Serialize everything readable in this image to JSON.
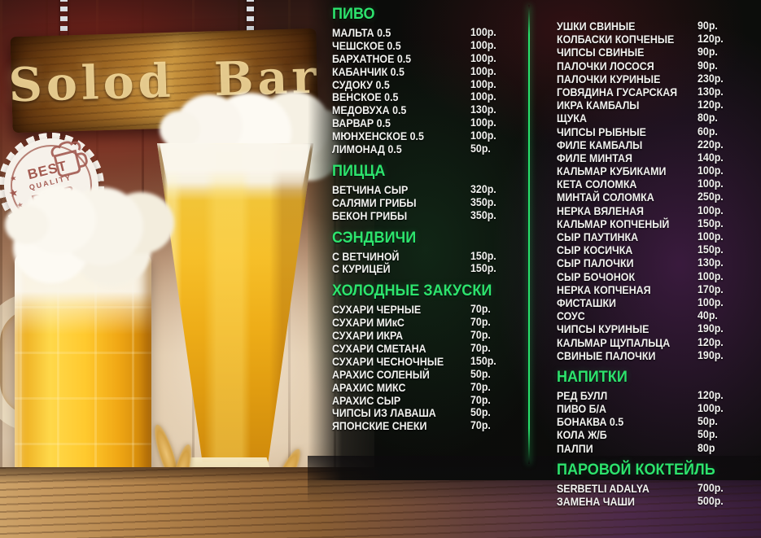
{
  "sign": {
    "title": "Solod Bar"
  },
  "badge": {
    "best": "BEST",
    "quality": "QUALITY",
    "beer": "BEER"
  },
  "colors": {
    "heading_green": "#2de36d",
    "divider_green": "#27e06a",
    "item_text": "#f2f2ef",
    "sign_text": "#f8de9e",
    "badge_accent": "#a25a50"
  },
  "menu": {
    "columns": [
      {
        "sections": [
          {
            "title": "ПИВО",
            "items": [
              {
                "name": "МАЛЬТА 0.5",
                "price": "100р."
              },
              {
                "name": "ЧЕШСКОЕ 0.5",
                "price": "100р."
              },
              {
                "name": "БАРХАТНОЕ 0.5",
                "price": "100р."
              },
              {
                "name": "КАБАНЧИК 0.5",
                "price": "100р."
              },
              {
                "name": "СУДОКУ 0.5",
                "price": "100р."
              },
              {
                "name": "ВЕНСКОЕ 0.5",
                "price": "100р."
              },
              {
                "name": "МЕДОВУХА 0.5",
                "price": "130р."
              },
              {
                "name": "ВАРВАР 0.5",
                "price": "100р."
              },
              {
                "name": "МЮНХЕНСКОЕ 0.5",
                "price": "100р."
              },
              {
                "name": "ЛИМОНАД 0.5",
                "price": "50р."
              }
            ]
          },
          {
            "title": "ПИЦЦА",
            "items": [
              {
                "name": "ВЕТЧИНА СЫР",
                "price": "320р."
              },
              {
                "name": "САЛЯМИ ГРИБЫ",
                "price": "350р."
              },
              {
                "name": "БЕКОН ГРИБЫ",
                "price": "350р."
              }
            ]
          },
          {
            "title": "СЭНДВИЧИ",
            "items": [
              {
                "name": "С ВЕТЧИНОЙ",
                "price": "150р."
              },
              {
                "name": "С КУРИЦЕЙ",
                "price": "150р."
              }
            ]
          },
          {
            "title": "ХОЛОДНЫЕ ЗАКУСКИ",
            "items": [
              {
                "name": "СУХАРИ ЧЕРНЫЕ",
                "price": "70р."
              },
              {
                "name": "СУХАРИ МИкС",
                "price": "70р."
              },
              {
                "name": "СУХАРИ ИКРА",
                "price": "70р."
              },
              {
                "name": "СУХАРИ СМЕТАНА",
                "price": "70р."
              },
              {
                "name": "СУХАРИ ЧЕСНОЧНЫЕ",
                "price": "150р."
              },
              {
                "name": "АРАХИС СОЛЕНЫЙ",
                "price": "50р."
              },
              {
                "name": "АРАХИС МИКС",
                "price": "70р."
              },
              {
                "name": "АРАХИС СЫР",
                "price": "70р."
              },
              {
                "name": "ЧИПСЫ ИЗ ЛАВАША",
                "price": "50р."
              },
              {
                "name": "ЯПОНСКИЕ СНЕКИ",
                "price": "70р."
              }
            ]
          }
        ]
      },
      {
        "sections": [
          {
            "title": "",
            "items": [
              {
                "name": "УШКИ СВИНЫЕ",
                "price": "90р."
              },
              {
                "name": "КОЛБАСКИ КОПЧЕНЫЕ",
                "price": "120р."
              },
              {
                "name": "ЧИПСЫ СВИНЫЕ",
                "price": "90р."
              },
              {
                "name": "ПАЛОЧКИ ЛОСОСЯ",
                "price": "90р."
              },
              {
                "name": "ПАЛОЧКИ КУРИНЫЕ",
                "price": "230р."
              },
              {
                "name": "ГОВЯДИНА ГУСАРСКАЯ",
                "price": "130р."
              },
              {
                "name": "ИКРА КАМБАЛЫ",
                "price": "120р."
              },
              {
                "name": "ЩУКА",
                "price": "80р."
              },
              {
                "name": "ЧИПСЫ РЫБНЫЕ",
                "price": "60р."
              },
              {
                "name": "ФИЛЕ КАМБАЛЫ",
                "price": "220р."
              },
              {
                "name": "ФИЛЕ МИНТАЯ",
                "price": "140р."
              },
              {
                "name": "КАЛЬМАР КУБИКАМИ",
                "price": "100р."
              },
              {
                "name": "КЕТА СОЛОМКА",
                "price": "100р."
              },
              {
                "name": "МИНТАЙ СОЛОМКА",
                "price": "250р."
              },
              {
                "name": "НЕРКА ВЯЛЕНАЯ",
                "price": "100р."
              },
              {
                "name": "КАЛЬМАР КОПЧЕНЫЙ",
                "price": "150р."
              },
              {
                "name": "СЫР ПАУТИНКА",
                "price": "100р."
              },
              {
                "name": "СЫР КОСИЧКА",
                "price": "150р."
              },
              {
                "name": "СЫР ПАЛОЧКИ",
                "price": "130р."
              },
              {
                "name": "СЫР БОЧОНОК",
                "price": "100р."
              },
              {
                "name": "НЕРКА КОПЧЕНАЯ",
                "price": "170р."
              },
              {
                "name": "ФИСТАШКИ",
                "price": "100р."
              },
              {
                "name": "СОУС",
                "price": "40р."
              },
              {
                "name": "ЧИПСЫ КУРИНЫЕ",
                "price": "190р."
              },
              {
                "name": "КАЛЬМАР ЩУПАЛЬЦА",
                "price": "120р."
              },
              {
                "name": "СВИНЫЕ ПАЛОЧКИ",
                "price": "190р."
              }
            ]
          },
          {
            "title": "НАПИТКИ",
            "items": [
              {
                "name": "РЕД БУЛЛ",
                "price": "120р."
              },
              {
                "name": "ПИВО Б/А",
                "price": "100р."
              },
              {
                "name": "БОНАКВА 0.5",
                "price": "50р."
              },
              {
                "name": "КОЛА Ж/Б",
                "price": "50р."
              },
              {
                "name": "ПАЛПИ",
                "price": "80р"
              }
            ]
          },
          {
            "title": "ПАРОВОЙ КОКТЕЙЛЬ",
            "items": [
              {
                "name": "SERBETLI ADALYA",
                "price": "700р."
              },
              {
                "name": "ЗАМЕНА ЧАШИ",
                "price": "500р."
              }
            ]
          }
        ]
      }
    ]
  }
}
